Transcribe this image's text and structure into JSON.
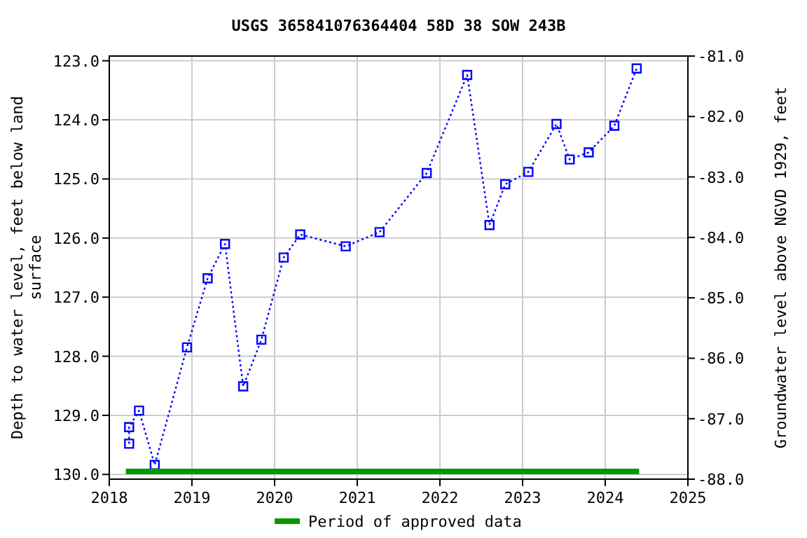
{
  "chart_data": {
    "type": "line",
    "title": "USGS 365841076364404 58D 38 SOW 243B",
    "ylabel": "Depth to water level, feet below land surface",
    "y2label": "Groundwater level above NGVD 1929, feet",
    "x": [
      2018.24,
      2018.24,
      2018.36,
      2018.55,
      2018.94,
      2019.19,
      2019.4,
      2019.62,
      2019.84,
      2020.11,
      2020.31,
      2020.86,
      2021.27,
      2021.84,
      2022.33,
      2022.6,
      2022.79,
      2023.07,
      2023.41,
      2023.57,
      2023.8,
      2024.11,
      2024.38
    ],
    "series": [
      {
        "color": "#0000ff",
        "values": [
          129.48,
          129.2,
          128.92,
          129.84,
          127.85,
          126.68,
          126.1,
          128.51,
          127.72,
          126.33,
          125.94,
          126.14,
          125.9,
          124.9,
          123.24,
          125.78,
          125.09,
          124.88,
          124.07,
          124.67,
          124.55,
          124.1,
          123.13
        ]
      },
      {
        "name": "Period of approved data",
        "color": "#009900",
        "x": [
          2018.2,
          2024.41
        ],
        "values": [
          129.95,
          129.95
        ],
        "marker": "none",
        "line_style": "solid"
      }
    ],
    "xlim": [
      2018,
      2025
    ],
    "xticks": [
      2018,
      2019,
      2020,
      2021,
      2022,
      2023,
      2024,
      2025
    ],
    "ylim": [
      130.08,
      122.92
    ],
    "yticks": [
      {
        "value": 123,
        "label": "123.0"
      },
      {
        "value": 124,
        "label": "124.0"
      },
      {
        "value": 125,
        "label": "125.0"
      },
      {
        "value": 126,
        "label": "126.0"
      },
      {
        "value": 127,
        "label": "127.0"
      },
      {
        "value": 128,
        "label": "128.0"
      },
      {
        "value": 129,
        "label": "129.0"
      },
      {
        "value": 130,
        "label": "130.0"
      }
    ],
    "y2lim": [
      -88,
      -81
    ],
    "y2ticks": [
      {
        "value": -81,
        "label": "-81.0"
      },
      {
        "value": -82,
        "label": "-82.0"
      },
      {
        "value": -83,
        "label": "-83.0"
      },
      {
        "value": -84,
        "label": "-84.0"
      },
      {
        "value": -85,
        "label": "-85.0"
      },
      {
        "value": -86,
        "label": "-86.0"
      },
      {
        "value": -87,
        "label": "-87.0"
      },
      {
        "value": -88,
        "label": "-88.0"
      }
    ],
    "grid": true,
    "legend": "bottom",
    "marker": "square",
    "line_style": "dotted"
  }
}
